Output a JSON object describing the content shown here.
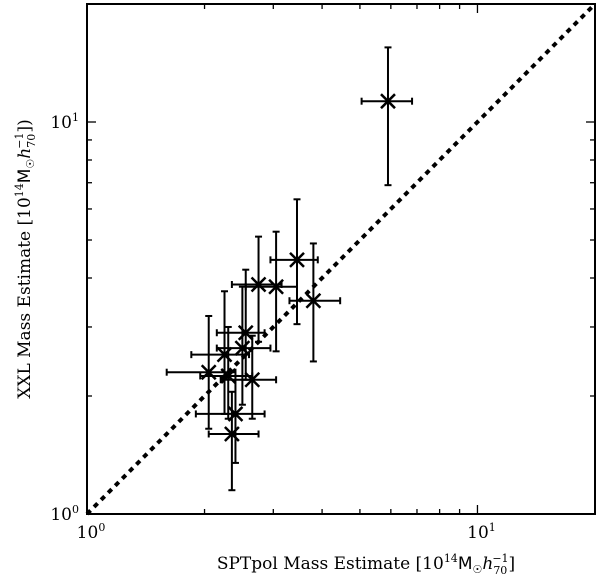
{
  "chart_data": {
    "type": "scatter",
    "title": "",
    "xlabel": {
      "prefix": "SPTpol Mass Estimate [10",
      "exp": "14",
      "mid": "M",
      "sun": "☉",
      "h": "h",
      "hsub": "70",
      "hsup": "−1",
      "suffix": "]"
    },
    "ylabel": {
      "prefix": "XXL Mass Estimate [10",
      "exp": "14",
      "mid": "M",
      "sun": "☉",
      "h": "h",
      "hsub": "70",
      "hsup": "−1",
      "suffix": "])"
    },
    "xscale": "log",
    "yscale": "log",
    "xlim": [
      1.0,
      20.0
    ],
    "ylim": [
      1.0,
      20.0
    ],
    "x_tick_labels": [
      {
        "value": 1,
        "base": "10",
        "exp": "0"
      },
      {
        "value": 10,
        "base": "10",
        "exp": "1"
      }
    ],
    "y_tick_labels": [
      {
        "value": 1,
        "base": "10",
        "exp": "0"
      },
      {
        "value": 10,
        "base": "10",
        "exp": "1"
      }
    ],
    "reference_line": {
      "style": "dotted",
      "description": "one-to-one",
      "from": [
        1.0,
        1.0
      ],
      "to": [
        20.0,
        20.0
      ]
    },
    "marker": "x",
    "grid": false,
    "points": [
      {
        "x": 5.9,
        "y": 11.3,
        "xerr": [
          5.05,
          6.8
        ],
        "yerr": [
          6.9,
          15.5
        ]
      },
      {
        "x": 3.45,
        "y": 4.45,
        "xerr": [
          2.95,
          3.9
        ],
        "yerr": [
          3.05,
          6.35
        ]
      },
      {
        "x": 3.8,
        "y": 3.5,
        "xerr": [
          3.3,
          4.45
        ],
        "yerr": [
          2.45,
          4.9
        ]
      },
      {
        "x": 2.75,
        "y": 3.85,
        "xerr": [
          2.35,
          3.15
        ],
        "yerr": [
          2.75,
          5.1
        ]
      },
      {
        "x": 3.05,
        "y": 3.8,
        "xerr": [
          2.55,
          3.45
        ],
        "yerr": [
          2.6,
          5.25
        ]
      },
      {
        "x": 2.55,
        "y": 2.9,
        "xerr": [
          2.15,
          2.85
        ],
        "yerr": [
          2.2,
          4.2
        ]
      },
      {
        "x": 2.5,
        "y": 2.65,
        "xerr": [
          2.15,
          2.95
        ],
        "yerr": [
          1.9,
          3.8
        ]
      },
      {
        "x": 2.25,
        "y": 2.55,
        "xerr": [
          1.85,
          2.6
        ],
        "yerr": [
          1.8,
          3.7
        ]
      },
      {
        "x": 2.05,
        "y": 2.3,
        "xerr": [
          1.6,
          2.4
        ],
        "yerr": [
          1.65,
          3.2
        ]
      },
      {
        "x": 2.3,
        "y": 2.25,
        "xerr": [
          1.95,
          2.65
        ],
        "yerr": [
          1.75,
          3.0
        ]
      },
      {
        "x": 2.65,
        "y": 2.2,
        "xerr": [
          2.2,
          3.05
        ],
        "yerr": [
          1.75,
          2.85
        ]
      },
      {
        "x": 2.4,
        "y": 1.8,
        "xerr": [
          1.9,
          2.85
        ],
        "yerr": [
          1.35,
          2.25
        ]
      },
      {
        "x": 2.35,
        "y": 1.6,
        "xerr": [
          2.05,
          2.75
        ],
        "yerr": [
          1.15,
          2.05
        ]
      }
    ]
  }
}
